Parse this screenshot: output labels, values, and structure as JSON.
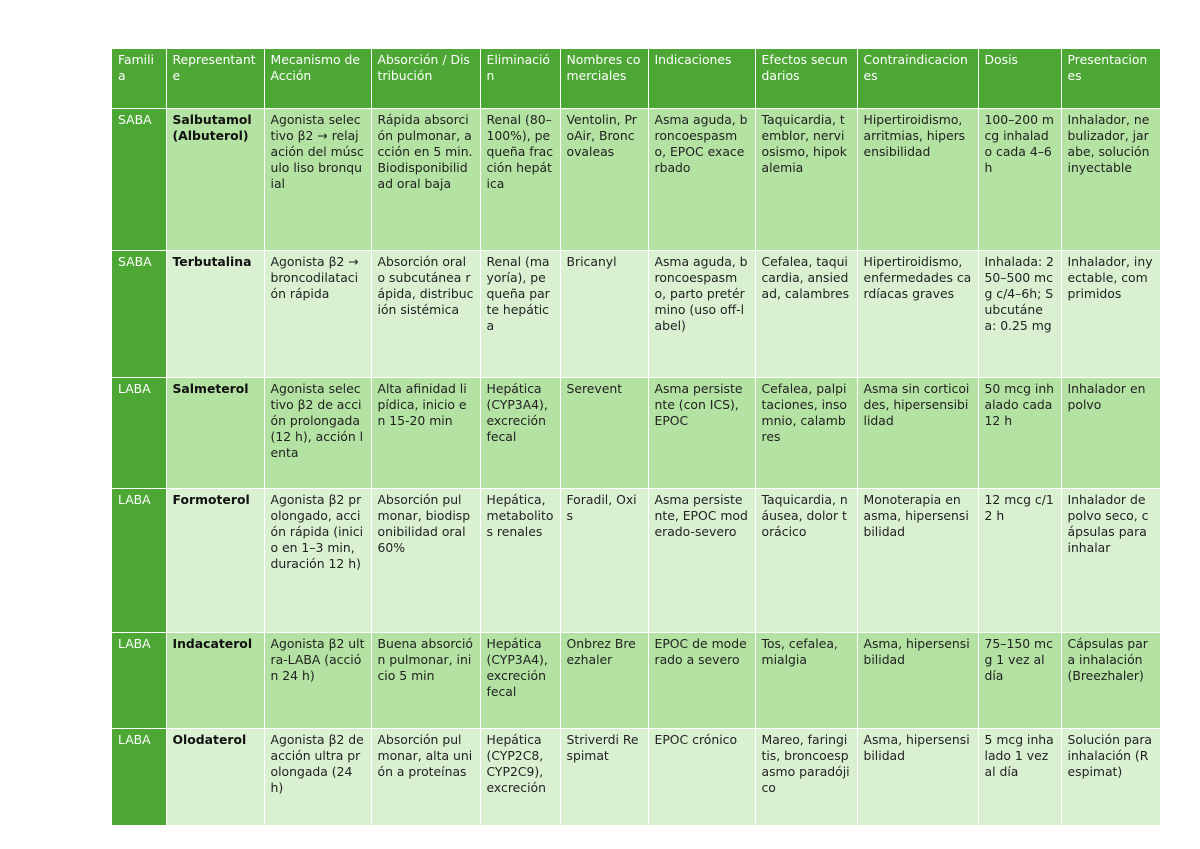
{
  "headers": [
    "Familia",
    "Representante",
    "Mecanismo de Acción",
    "Absorción / Distribución",
    "Eliminación",
    "Nombres comerciales",
    "Indicaciones",
    "Efectos secundarios",
    "Contraindicaciones",
    "Dosis",
    "Presentaciones"
  ],
  "rows": [
    {
      "familia": "SABA",
      "representante": "Salbutamol (Albuterol)",
      "mecanismo": "Agonista selectivo β2 → relajación del músculo liso bronquial",
      "absorcion": "Rápida absorción pulmonar, acción en 5 min. Biodisponibilidad oral baja",
      "eliminacion": "Renal (80–100%), pequeña fracción hepática",
      "nombres": "Ventolin, ProAir, Broncovaleas",
      "indicaciones": "Asma aguda, broncoespasmo, EPOC exacerbado",
      "efectos": "Taquicardia, temblor, nerviosismo, hipokalemia",
      "contraindicaciones": "Hipertiroidismo, arritmias, hipersensibilidad",
      "dosis": "100–200 mcg inhalado cada 4–6 h",
      "presentaciones": "Inhalador, nebulizador, jarabe, solución inyectable"
    },
    {
      "familia": "SABA",
      "representante": "Terbutalina",
      "mecanismo": "Agonista β2 → broncodilatación rápida",
      "absorcion": "Absorción oral o subcutánea rápida, distribución sistémica",
      "eliminacion": "Renal (mayoría), pequeña parte hepática",
      "nombres": "Bricanyl",
      "indicaciones": "Asma aguda, broncoespasmo, parto pretérmino (uso off-label)",
      "efectos": "Cefalea, taquicardia, ansiedad, calambres",
      "contraindicaciones": "Hipertiroidismo, enfermedades cardíacas graves",
      "dosis": "Inhalada: 250–500 mcg c/4–6h; Subcutánea: 0.25 mg",
      "presentaciones": "Inhalador, inyectable, comprimidos"
    },
    {
      "familia": "LABA",
      "representante": "Salmeterol",
      "mecanismo": "Agonista selectivo β2 de acción prolongada (12 h), acción lenta",
      "absorcion": "Alta afinidad lipídica, inicio en 15-20 min",
      "eliminacion": "Hepática (CYP3A4), excreción fecal",
      "nombres": "Serevent",
      "indicaciones": "Asma persistente (con ICS), EPOC",
      "efectos": "Cefalea, palpitaciones, insomnio, calambres",
      "contraindicaciones": "Asma sin corticoides, hipersensibilidad",
      "dosis": "50 mcg inhalado cada 12 h",
      "presentaciones": "Inhalador en polvo"
    },
    {
      "familia": "LABA",
      "representante": "Formoterol",
      "mecanismo": "Agonista β2 prolongado, acción rápida (inicio en 1–3 min, duración 12 h)",
      "absorcion": "Absorción pulmonar, biodisponibilidad oral 60%",
      "eliminacion": "Hepática, metabolitos renales",
      "nombres": "Foradil, Oxis",
      "indicaciones": "Asma persistente, EPOC moderado-severo",
      "efectos": "Taquicardia, náusea, dolor torácico",
      "contraindicaciones": "Monoterapia en asma, hipersensibilidad",
      "dosis": "12 mcg c/12 h",
      "presentaciones": "Inhalador de polvo seco, cápsulas para inhalar"
    },
    {
      "familia": "LABA",
      "representante": "Indacaterol",
      "mecanismo": "Agonista β2 ultra-LABA (acción 24 h)",
      "absorcion": "Buena absorción pulmonar, inicio 5 min",
      "eliminacion": "Hepática (CYP3A4), excreción fecal",
      "nombres": "Onbrez Breezhaler",
      "indicaciones": "EPOC de moderado a severo",
      "efectos": "Tos, cefalea, mialgia",
      "contraindicaciones": "Asma, hipersensibilidad",
      "dosis": "75–150 mcg 1 vez al día",
      "presentaciones": "Cápsulas para inhalación (Breezhaler)"
    },
    {
      "familia": "LABA",
      "representante": "Olodaterol",
      "mecanismo": "Agonista β2 de acción ultra prolongada (24 h)",
      "absorcion": "Absorción pulmonar, alta unión a proteínas",
      "eliminacion": "Hepática (CYP2C8, CYP2C9), excreción",
      "nombres": "Striverdi Respimat",
      "indicaciones": "EPOC crónico",
      "efectos": "Mareo, faringitis, broncoespasmo paradójico",
      "contraindicaciones": "Asma, hipersensibilidad",
      "dosis": "5 mcg inhalado 1 vez al día",
      "presentaciones": "Solución para inhalación (Respimat)"
    }
  ]
}
